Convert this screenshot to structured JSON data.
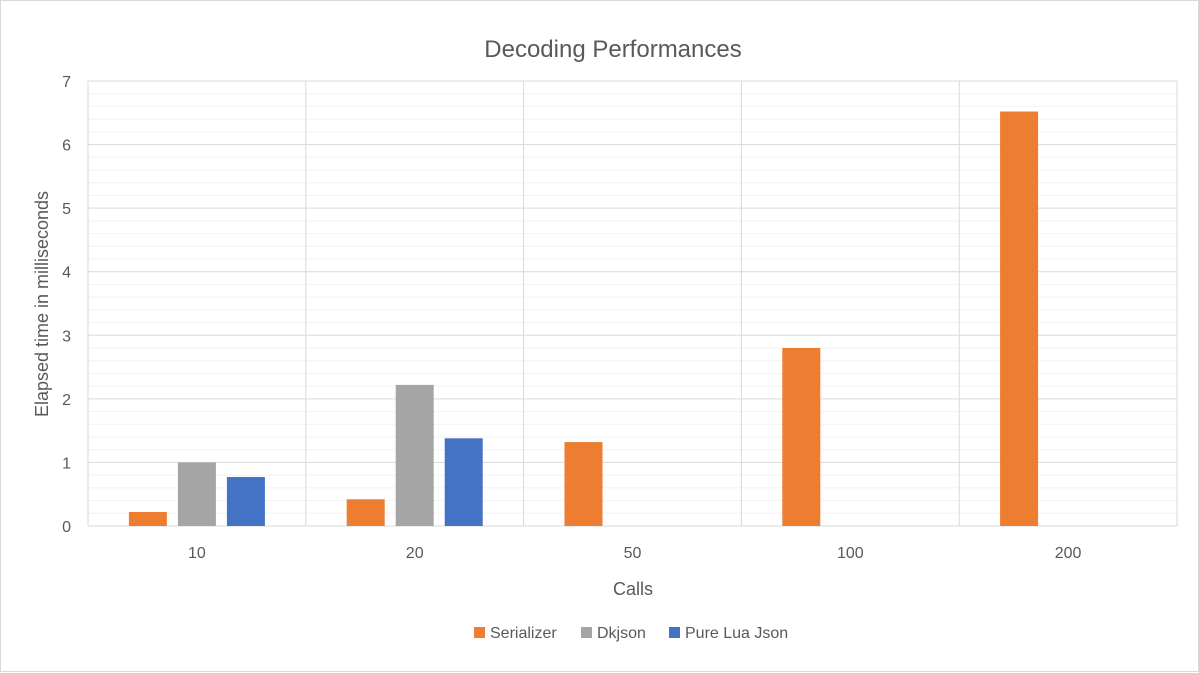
{
  "chart_data": {
    "type": "bar",
    "title": "Decoding Performances",
    "xlabel": "Calls",
    "ylabel": "Elapsed time in milliseconds",
    "categories": [
      "10",
      "20",
      "50",
      "100",
      "200"
    ],
    "ylim": [
      0,
      7
    ],
    "yticks": [
      "0",
      "1",
      "2",
      "3",
      "4",
      "5",
      "6",
      "7"
    ],
    "grid": true,
    "legend_position": "bottom",
    "series": [
      {
        "name": "Serializer",
        "color": "#ED7D31",
        "values": [
          0.22,
          0.42,
          1.32,
          2.8,
          6.52
        ]
      },
      {
        "name": "Dkjson",
        "color": "#A5A5A5",
        "values": [
          1.0,
          2.22,
          null,
          null,
          null
        ]
      },
      {
        "name": "Pure Lua Json",
        "color": "#4472C4",
        "values": [
          0.77,
          1.38,
          null,
          null,
          null
        ]
      }
    ]
  }
}
